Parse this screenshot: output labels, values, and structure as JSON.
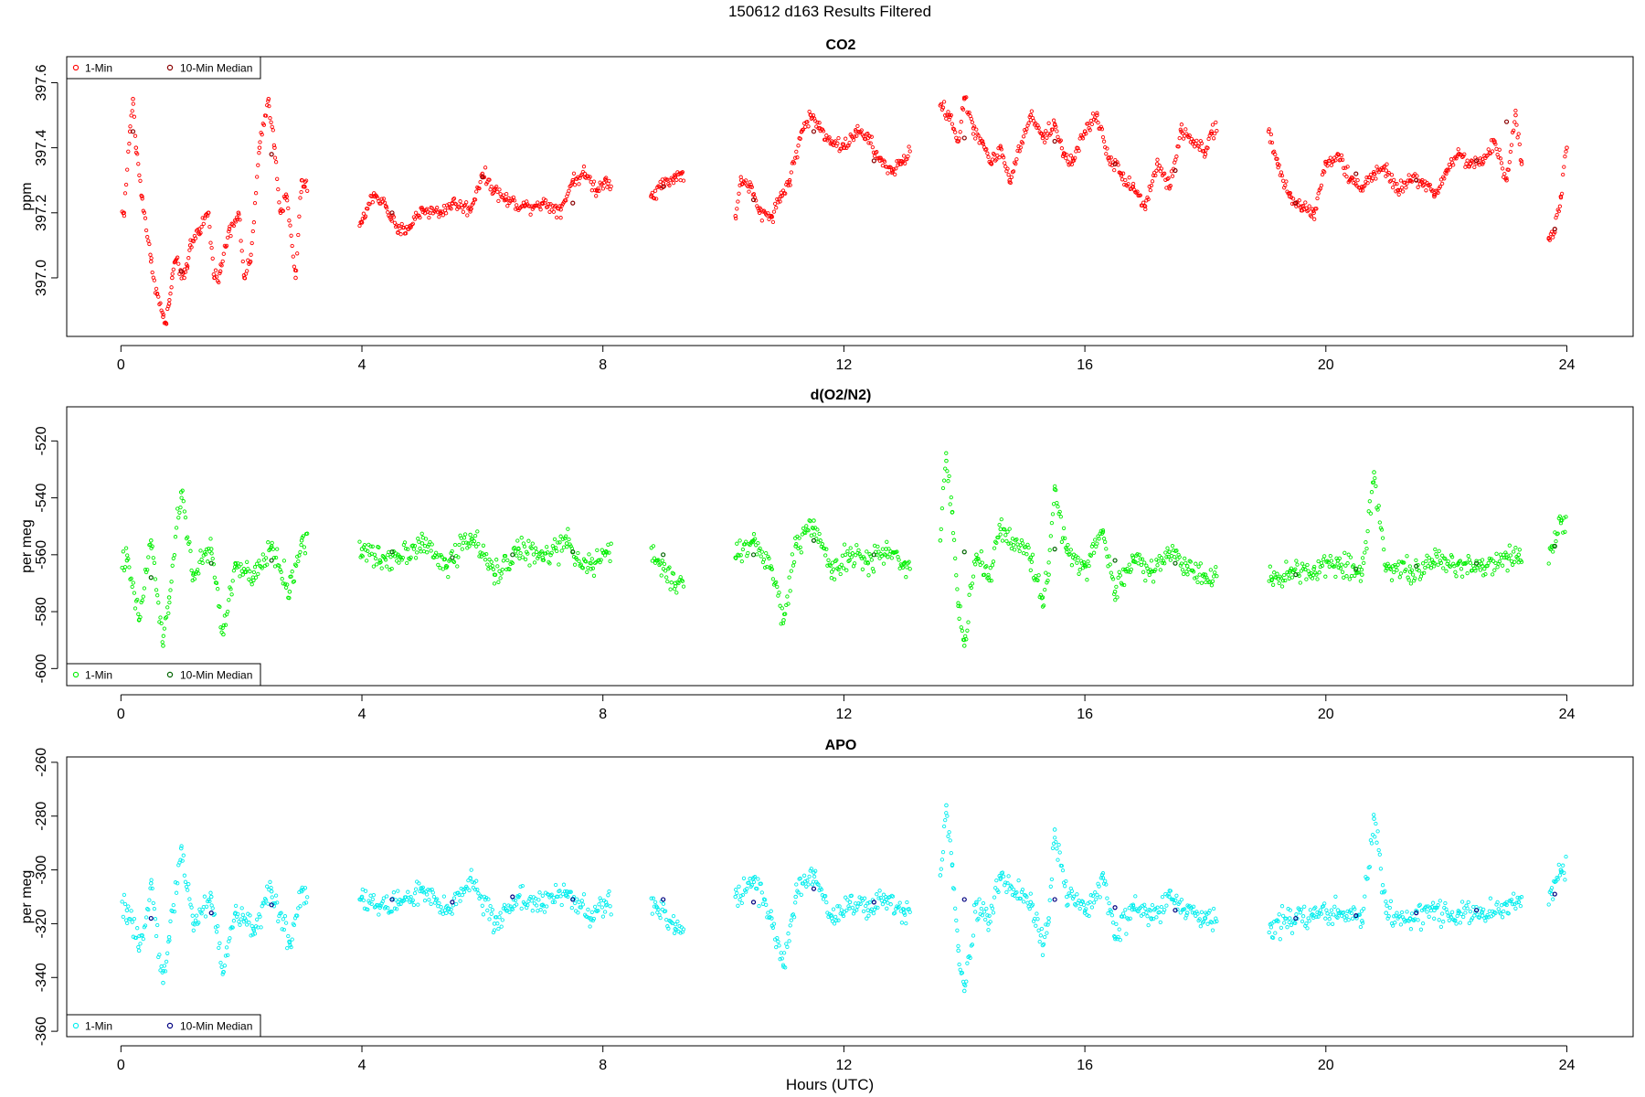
{
  "title": "150612   d163   Results Filtered",
  "xlabel": "Hours (UTC)",
  "legend_labels": [
    "1-Min",
    "10-Min Median"
  ],
  "x_ticks": [
    0,
    4,
    8,
    12,
    16,
    20,
    24
  ],
  "chart_data": [
    {
      "type": "scatter",
      "title": "CO2",
      "ylabel": "ppm",
      "xlim": [
        -0.9,
        25.1
      ],
      "ylim": [
        396.82,
        397.68
      ],
      "y_ticks": [
        397.0,
        397.2,
        397.4,
        397.6
      ],
      "y_tick_labels": [
        "397.0",
        "397.2",
        "397.4",
        "397.6"
      ],
      "legend_position": "top-left",
      "colors": {
        "one_min": "#ff0000",
        "median": "#8b0000"
      },
      "gaps": [
        [
          3.1,
          3.95
        ],
        [
          8.15,
          8.8
        ],
        [
          9.35,
          10.2
        ],
        [
          13.1,
          13.6
        ],
        [
          18.2,
          19.05
        ],
        [
          23.25,
          23.7
        ]
      ],
      "series": [
        {
          "name": "1-Min",
          "x": [
            0.05,
            0.15,
            0.2,
            0.25,
            0.35,
            0.5,
            0.6,
            0.7,
            0.75,
            0.8,
            0.85,
            0.9,
            1.0,
            1.05,
            1.1,
            1.15,
            1.3,
            1.45,
            1.55,
            1.65,
            1.8,
            1.95,
            2.05,
            2.15,
            2.3,
            2.45,
            2.55,
            2.65,
            2.75,
            2.9,
            3.0,
            3.05,
            4.0,
            4.2,
            4.4,
            4.6,
            4.8,
            5.0,
            5.3,
            5.5,
            5.8,
            6.0,
            6.2,
            6.4,
            6.7,
            7.0,
            7.3,
            7.5,
            7.7,
            7.9,
            8.05,
            8.8,
            9.0,
            9.2,
            9.3,
            10.2,
            10.3,
            10.45,
            10.6,
            10.8,
            10.95,
            11.1,
            11.3,
            11.45,
            11.6,
            11.8,
            12.0,
            12.2,
            12.4,
            12.6,
            12.8,
            12.95,
            13.6,
            13.75,
            13.9,
            14.0,
            14.15,
            14.3,
            14.45,
            14.6,
            14.75,
            15.1,
            15.3,
            15.5,
            15.65,
            15.8,
            16.0,
            16.2,
            16.4,
            16.6,
            16.8,
            17.0,
            17.2,
            17.4,
            17.6,
            17.8,
            18.0,
            18.1,
            19.05,
            19.2,
            19.4,
            19.6,
            19.8,
            20.0,
            20.2,
            20.4,
            20.6,
            20.8,
            21.0,
            21.2,
            21.4,
            21.6,
            21.8,
            22.0,
            22.2,
            22.4,
            22.6,
            22.8,
            23.0,
            23.15,
            23.25,
            23.7,
            23.8,
            23.9,
            24.0
          ],
          "y": [
            397.2,
            397.45,
            397.55,
            397.4,
            397.25,
            397.05,
            396.95,
            396.88,
            396.86,
            396.92,
            397.0,
            397.05,
            397.02,
            397.0,
            397.03,
            397.1,
            397.15,
            397.2,
            397.0,
            397.02,
            397.15,
            397.2,
            397.0,
            397.05,
            397.4,
            397.55,
            397.4,
            397.2,
            397.25,
            397.0,
            397.3,
            397.28,
            397.17,
            397.26,
            397.22,
            397.14,
            397.16,
            397.21,
            397.2,
            397.23,
            397.21,
            397.32,
            397.27,
            397.24,
            397.22,
            397.23,
            397.21,
            397.3,
            397.32,
            397.27,
            397.3,
            397.25,
            397.29,
            397.31,
            397.32,
            397.19,
            397.3,
            397.28,
            397.2,
            397.19,
            397.25,
            397.3,
            397.45,
            397.5,
            397.46,
            397.42,
            397.4,
            397.45,
            397.43,
            397.36,
            397.33,
            397.35,
            397.53,
            397.5,
            397.42,
            397.55,
            397.46,
            397.42,
            397.35,
            397.4,
            397.3,
            397.5,
            397.43,
            397.47,
            397.38,
            397.36,
            397.45,
            397.5,
            397.37,
            397.32,
            397.28,
            397.22,
            397.35,
            397.28,
            397.45,
            397.42,
            397.38,
            397.45,
            397.45,
            397.35,
            397.25,
            397.22,
            397.2,
            397.35,
            397.38,
            397.3,
            397.28,
            397.32,
            397.33,
            397.27,
            397.3,
            397.3,
            397.25,
            397.33,
            397.38,
            397.35,
            397.35,
            397.42,
            397.3,
            397.5,
            397.35,
            397.12,
            397.15,
            397.25,
            397.4
          ]
        },
        {
          "name": "10-Min Median",
          "x": [
            0.2,
            1.0,
            2.5,
            4.5,
            6.0,
            7.5,
            9.0,
            10.5,
            11.5,
            12.5,
            14.0,
            15.5,
            16.5,
            17.5,
            19.5,
            20.5,
            21.5,
            22.5,
            23.0,
            23.8
          ],
          "y": [
            397.45,
            397.02,
            397.38,
            397.2,
            397.31,
            397.23,
            397.28,
            397.24,
            397.45,
            397.36,
            397.43,
            397.42,
            397.35,
            397.33,
            397.23,
            397.32,
            397.3,
            397.36,
            397.48,
            397.15
          ]
        }
      ]
    },
    {
      "type": "scatter",
      "title": "d(O2/N2)",
      "ylabel": "per meg",
      "xlim": [
        -0.9,
        25.1
      ],
      "ylim": [
        -606,
        -508
      ],
      "y_ticks": [
        -600,
        -580,
        -560,
        -540,
        -520
      ],
      "y_tick_labels": [
        "-600",
        "-580",
        "-560",
        "-540",
        "-520"
      ],
      "legend_position": "bottom-left",
      "colors": {
        "one_min": "#00ee00",
        "median": "#006400"
      },
      "gaps": [
        [
          3.1,
          3.95
        ],
        [
          8.15,
          8.8
        ],
        [
          9.35,
          10.2
        ],
        [
          13.1,
          13.6
        ],
        [
          18.2,
          19.05
        ],
        [
          23.25,
          23.7
        ]
      ],
      "series": [
        {
          "name": "1-Min",
          "x": [
            0.1,
            0.3,
            0.5,
            0.7,
            0.8,
            1.0,
            1.2,
            1.5,
            1.7,
            1.9,
            2.2,
            2.5,
            2.8,
            3.0,
            4.0,
            4.3,
            4.6,
            5.0,
            5.4,
            5.8,
            6.2,
            6.6,
            7.0,
            7.4,
            7.8,
            8.05,
            8.9,
            9.2,
            10.2,
            10.5,
            10.8,
            11.0,
            11.2,
            11.5,
            11.8,
            12.1,
            12.4,
            12.7,
            13.0,
            13.6,
            13.7,
            13.8,
            13.9,
            14.0,
            14.2,
            14.4,
            14.6,
            15.1,
            15.3,
            15.4,
            15.5,
            15.7,
            16.0,
            16.3,
            16.5,
            16.8,
            17.1,
            17.4,
            17.7,
            18.0,
            19.1,
            19.4,
            19.8,
            20.2,
            20.6,
            20.8,
            21.0,
            21.4,
            21.8,
            22.2,
            22.6,
            23.0,
            23.2,
            23.75,
            23.9
          ],
          "y": [
            -562,
            -583,
            -555,
            -592,
            -575,
            -538,
            -567,
            -558,
            -588,
            -563,
            -569,
            -557,
            -573,
            -555,
            -558,
            -562,
            -560,
            -556,
            -564,
            -553,
            -567,
            -558,
            -561,
            -556,
            -565,
            -559,
            -562,
            -570,
            -561,
            -555,
            -565,
            -583,
            -557,
            -548,
            -566,
            -560,
            -563,
            -558,
            -563,
            -555,
            -527,
            -545,
            -578,
            -592,
            -560,
            -568,
            -551,
            -561,
            -575,
            -567,
            -537,
            -558,
            -564,
            -552,
            -573,
            -561,
            -566,
            -559,
            -564,
            -567,
            -569,
            -566,
            -565,
            -562,
            -567,
            -531,
            -564,
            -566,
            -563,
            -563,
            -564,
            -561,
            -560,
            -557,
            -548
          ]
        },
        {
          "name": "10-Min Median",
          "x": [
            0.5,
            1.5,
            2.5,
            4.5,
            5.5,
            6.5,
            7.5,
            9.0,
            10.5,
            11.5,
            12.5,
            14.0,
            15.5,
            16.5,
            17.5,
            19.5,
            20.5,
            21.5,
            22.5,
            23.8
          ],
          "y": [
            -568,
            -563,
            -562,
            -559,
            -561,
            -560,
            -559,
            -560,
            -560,
            -555,
            -560,
            -559,
            -558,
            -562,
            -563,
            -567,
            -565,
            -564,
            -563,
            -557
          ]
        }
      ]
    },
    {
      "type": "scatter",
      "title": "APO",
      "ylabel": "per meg",
      "xlim": [
        -0.9,
        25.1
      ],
      "ylim": [
        -362,
        -258
      ],
      "y_ticks": [
        -360,
        -340,
        -320,
        -300,
        -280,
        -260
      ],
      "y_tick_labels": [
        "-360",
        "-340",
        "-320",
        "-300",
        "-280",
        "-260"
      ],
      "legend_position": "bottom-left",
      "colors": {
        "one_min": "#00eeee",
        "median": "#000080"
      },
      "gaps": [
        [
          3.1,
          3.95
        ],
        [
          8.15,
          8.8
        ],
        [
          9.35,
          10.2
        ],
        [
          13.1,
          13.6
        ],
        [
          18.2,
          19.05
        ],
        [
          23.25,
          23.7
        ]
      ],
      "series": [
        {
          "name": "1-Min",
          "x": [
            0.1,
            0.3,
            0.5,
            0.7,
            0.8,
            1.0,
            1.2,
            1.5,
            1.7,
            1.9,
            2.2,
            2.5,
            2.8,
            3.0,
            4.0,
            4.3,
            4.6,
            5.0,
            5.4,
            5.8,
            6.2,
            6.6,
            7.0,
            7.4,
            7.8,
            8.05,
            8.9,
            9.2,
            10.2,
            10.5,
            10.8,
            11.0,
            11.2,
            11.5,
            11.8,
            12.1,
            12.4,
            12.7,
            13.0,
            13.6,
            13.7,
            13.8,
            13.9,
            14.0,
            14.2,
            14.4,
            14.6,
            15.1,
            15.3,
            15.4,
            15.5,
            15.7,
            16.0,
            16.3,
            16.5,
            16.8,
            17.1,
            17.4,
            17.7,
            18.0,
            19.1,
            19.4,
            19.8,
            20.2,
            20.6,
            20.8,
            21.0,
            21.4,
            21.8,
            22.2,
            22.6,
            23.0,
            23.2,
            23.75,
            23.9
          ],
          "y": [
            -315,
            -330,
            -305,
            -342,
            -325,
            -292,
            -320,
            -310,
            -338,
            -316,
            -322,
            -308,
            -327,
            -308,
            -310,
            -314,
            -312,
            -308,
            -316,
            -303,
            -320,
            -310,
            -313,
            -308,
            -318,
            -312,
            -314,
            -322,
            -310,
            -303,
            -318,
            -336,
            -310,
            -301,
            -318,
            -312,
            -315,
            -311,
            -316,
            -302,
            -276,
            -298,
            -330,
            -345,
            -312,
            -320,
            -303,
            -312,
            -328,
            -318,
            -285,
            -310,
            -316,
            -303,
            -325,
            -313,
            -318,
            -310,
            -316,
            -318,
            -320,
            -318,
            -317,
            -315,
            -319,
            -281,
            -316,
            -318,
            -315,
            -316,
            -317,
            -313,
            -312,
            -309,
            -300
          ]
        },
        {
          "name": "10-Min Median",
          "x": [
            0.5,
            1.5,
            2.5,
            4.5,
            5.5,
            6.5,
            7.5,
            9.0,
            10.5,
            11.5,
            12.5,
            14.0,
            15.5,
            16.5,
            17.5,
            19.5,
            20.5,
            21.5,
            22.5,
            23.8
          ],
          "y": [
            -318,
            -316,
            -313,
            -311,
            -312,
            -310,
            -311,
            -311,
            -312,
            -307,
            -312,
            -311,
            -311,
            -314,
            -315,
            -318,
            -317,
            -316,
            -315,
            -309
          ]
        }
      ]
    }
  ]
}
